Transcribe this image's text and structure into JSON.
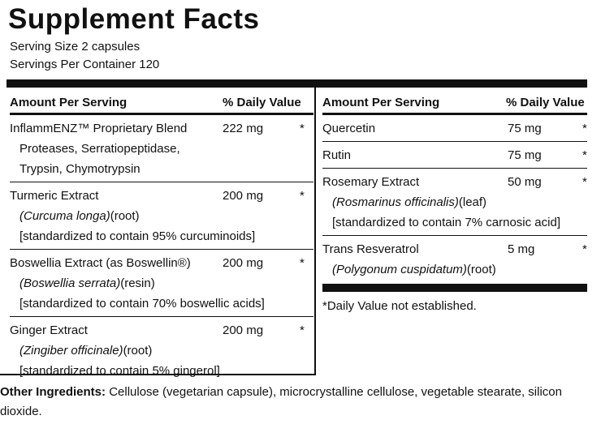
{
  "header": {
    "title": "Supplement Facts",
    "serving_size": "Serving Size 2 capsules",
    "servings_per_container": "Servings Per Container 120"
  },
  "left_table": {
    "columns": [
      "Amount Per Serving",
      "% Daily Value"
    ],
    "rows": [
      {
        "name": "InflammENZ™ Proprietary Blend",
        "amount": "222 mg",
        "daily_value": "*",
        "lines": [
          "Proteases, Serratiopeptidase,",
          "Trypsin, Chymotrypsin"
        ]
      },
      {
        "name": "Turmeric Extract",
        "amount": "200 mg",
        "daily_value": "*",
        "lines": [
          {
            "latin": "(Curcuma longa)",
            "part": "(root)"
          },
          "[standardized to contain 95% curcuminoids]"
        ]
      },
      {
        "name": "Boswellia Extract (as Boswellin®)",
        "amount": "200 mg",
        "daily_value": "*",
        "lines": [
          {
            "latin": "(Boswellia serrata)",
            "part": "(resin)"
          },
          "[standardized to contain 70% boswellic acids]"
        ]
      },
      {
        "name": "Ginger Extract",
        "amount": "200 mg",
        "daily_value": "*",
        "lines": [
          {
            "latin": "(Zingiber officinale)",
            "part": "(root)"
          },
          "[standardized to contain 5% gingerol]"
        ]
      }
    ]
  },
  "right_table": {
    "columns": [
      "Amount Per Serving",
      "% Daily Value"
    ],
    "rows": [
      {
        "name": "Quercetin",
        "amount": "75 mg",
        "daily_value": "*",
        "lines": []
      },
      {
        "name": "Rutin",
        "amount": "75 mg",
        "daily_value": "*",
        "lines": []
      },
      {
        "name": "Rosemary Extract",
        "amount": "50 mg",
        "daily_value": "*",
        "lines": [
          {
            "latin": "(Rosmarinus officinalis)",
            "part": "(leaf)"
          },
          "[standardized to contain 7% carnosic acid]"
        ]
      },
      {
        "name": "Trans Resveratrol",
        "amount": "5 mg",
        "daily_value": "*",
        "lines": [
          {
            "latin": "(Polygonum cuspidatum)",
            "part": "(root)"
          }
        ]
      }
    ],
    "footnote": "*Daily Value not established."
  },
  "other_ingredients": {
    "label": "Other Ingredients:",
    "text": "Cellulose (vegetarian capsule), microcrystalline cellulose, vegetable stearate, silicon dioxide."
  }
}
